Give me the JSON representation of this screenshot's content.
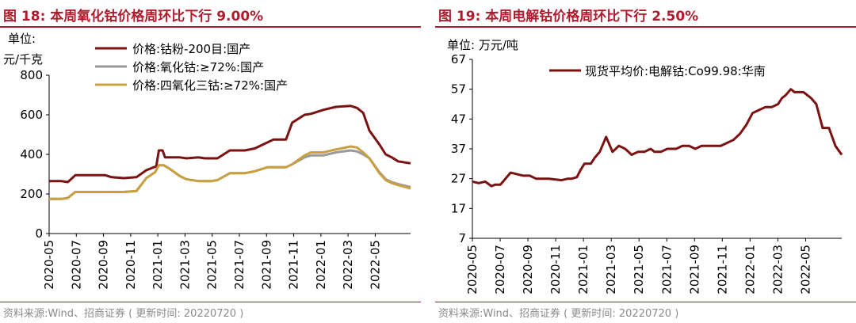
{
  "charts": [
    {
      "figure_title": "图 18:  本周氧化钴价格周环比下行 9.00%",
      "unit_line1": "单位:",
      "unit_line2": "元/千克",
      "source": "资料来源:Wind、招商证券 ( 更新时间: 20220720 )"
    },
    {
      "figure_title": "图 19:  本周电解钴价格周环比下行 2.50%",
      "unit": "单位:  万元/吨",
      "source": "资料来源:Wind、招商证券 ( 更新时间: 20220720 )"
    }
  ],
  "chart_data": [
    {
      "type": "line",
      "title": "本周氧化钴价格周环比下行 9.00%",
      "ylabel": "元/千克",
      "ylim": [
        0,
        800
      ],
      "yticks": [
        0,
        200,
        400,
        600,
        800
      ],
      "xlim": [
        "2020-05",
        "2022-07-20"
      ],
      "xtick_labels": [
        "2020-05",
        "2020-07",
        "2020-09",
        "2020-11",
        "2021-01",
        "2021-03",
        "2021-05",
        "2021-07",
        "2021-09",
        "2021-11",
        "2022-01",
        "2022-03",
        "2022-05"
      ],
      "series": [
        {
          "name": "价格:钴粉-200目:国产",
          "color": "#7b1111",
          "x": [
            0,
            1,
            1.5,
            2.1,
            3,
            4,
            4.5,
            5,
            6,
            7,
            7.8,
            8.6,
            8.8,
            9.1,
            9.3,
            10.5,
            11,
            12,
            12.5,
            13.5,
            14.5,
            15,
            15.7,
            16.5,
            17.5,
            18,
            19,
            19.5,
            20.5,
            21,
            21.5,
            22,
            23,
            24.2,
            24.7,
            25.2,
            25.7,
            26.5,
            27,
            27.5,
            28,
            29
          ],
          "y": [
            265,
            265,
            260,
            295,
            295,
            295,
            295,
            285,
            280,
            285,
            320,
            340,
            420,
            420,
            385,
            385,
            380,
            385,
            380,
            380,
            420,
            420,
            420,
            430,
            460,
            475,
            475,
            560,
            600,
            605,
            615,
            625,
            640,
            645,
            635,
            610,
            520,
            450,
            400,
            385,
            365,
            355
          ]
        },
        {
          "name": "价格:氧化钴:≥72%:国产",
          "color": "#9a9a9a",
          "x": [
            0,
            1,
            1.5,
            2.1,
            3,
            4,
            5,
            6,
            7,
            7.8,
            8.5,
            8.8,
            9.2,
            9.6,
            10.5,
            11,
            12,
            13,
            13.5,
            14.5,
            15,
            15.7,
            16.5,
            17.5,
            18,
            19,
            19.5,
            20.5,
            21,
            21.5,
            22,
            23,
            24.2,
            24.7,
            25.2,
            25.7,
            26.5,
            27,
            27.5,
            28,
            29
          ],
          "y": [
            175,
            175,
            180,
            210,
            210,
            210,
            210,
            210,
            215,
            280,
            310,
            345,
            345,
            330,
            290,
            275,
            265,
            265,
            270,
            305,
            305,
            305,
            315,
            335,
            335,
            335,
            350,
            385,
            395,
            395,
            395,
            410,
            420,
            415,
            400,
            380,
            310,
            275,
            260,
            250,
            235
          ]
        },
        {
          "name": "价格:四氧化三钴:≥72%:国产",
          "color": "#c8a040",
          "x": [
            0,
            1,
            1.5,
            2.1,
            3,
            4,
            5,
            6,
            7,
            7.8,
            8.5,
            8.8,
            9.2,
            9.6,
            10.5,
            11,
            12,
            13,
            13.5,
            14.5,
            15,
            15.7,
            16.5,
            17.5,
            18,
            19,
            19.5,
            20.5,
            21,
            21.5,
            22,
            23,
            24.2,
            24.7,
            25.2,
            25.7,
            26.5,
            27,
            27.5,
            28,
            29
          ],
          "y": [
            175,
            175,
            180,
            210,
            210,
            210,
            210,
            210,
            215,
            280,
            310,
            345,
            345,
            330,
            290,
            275,
            265,
            265,
            270,
            305,
            305,
            305,
            315,
            335,
            335,
            335,
            350,
            395,
            410,
            410,
            410,
            425,
            440,
            435,
            410,
            380,
            305,
            270,
            255,
            245,
            228
          ]
        }
      ]
    },
    {
      "type": "line",
      "title": "本周电解钴价格周环比下行 2.50%",
      "ylabel": "万元/吨",
      "ylim": [
        7,
        67
      ],
      "yticks": [
        7,
        17,
        27,
        37,
        47,
        57,
        67
      ],
      "xlim": [
        "2020-05",
        "2022-07-20"
      ],
      "xtick_labels": [
        "2020-05",
        "2020-07",
        "2020-09",
        "2020-11",
        "2021-01",
        "2021-03",
        "2021-05",
        "2021-07",
        "2021-09",
        "2021-11",
        "2022-01",
        "2022-03",
        "2022-05"
      ],
      "series": [
        {
          "name": "现货平均价:电解钴:Co99.98:华南",
          "color": "#7b1111",
          "x": [
            0,
            0.5,
            1,
            1.5,
            1.8,
            2.2,
            3,
            4,
            4.5,
            5,
            5.5,
            6,
            7,
            7.5,
            7.8,
            8.2,
            8.5,
            8.8,
            9.3,
            9.6,
            10,
            10.5,
            11,
            11.5,
            12,
            12.5,
            13,
            13.5,
            14,
            14.3,
            14.8,
            15.3,
            16,
            16.5,
            17,
            17.5,
            18,
            18.5,
            19,
            19.5,
            20,
            20.5,
            21,
            21.5,
            22,
            22.5,
            23,
            23.5,
            24,
            24.3,
            24.6,
            25,
            25.3,
            25.7,
            26,
            26.3,
            26.6,
            27,
            27.5,
            28,
            28.5,
            29
          ],
          "y": [
            26,
            25.5,
            26,
            24.5,
            25,
            25,
            29,
            28,
            28,
            27,
            27,
            27,
            26.5,
            27,
            27,
            27.5,
            30,
            32,
            32,
            34,
            36,
            41,
            36,
            38,
            37,
            35,
            36,
            36,
            37,
            36,
            36,
            37,
            37,
            38,
            38,
            37,
            38,
            38,
            38,
            38,
            39,
            40,
            42,
            45,
            49,
            50,
            51,
            51,
            52,
            54,
            55,
            57,
            56,
            56,
            56,
            55,
            54,
            52,
            44,
            44,
            38,
            35
          ]
        }
      ]
    }
  ]
}
